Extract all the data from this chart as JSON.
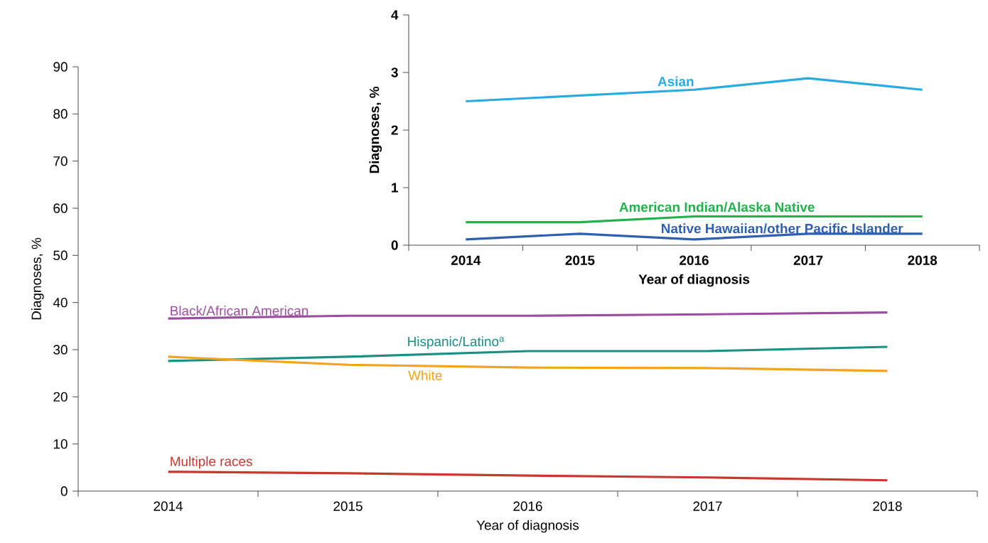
{
  "chart_data": [
    {
      "type": "line",
      "xlabel": "Year of diagnosis",
      "ylabel": "Diagnoses, %",
      "categories": [
        "2014",
        "2015",
        "2016",
        "2017",
        "2018"
      ],
      "ylim": [
        0,
        90
      ],
      "yticks": [
        0,
        10,
        20,
        30,
        40,
        50,
        60,
        70,
        80,
        90
      ],
      "series": [
        {
          "name": "Black/African American",
          "color": "#9b4ea0",
          "values": [
            36.6,
            37.2,
            37.2,
            37.5,
            37.9
          ]
        },
        {
          "name": "Hispanic/Latino$^{a}$",
          "color": "#1a8f84",
          "values": [
            27.6,
            28.5,
            29.7,
            29.7,
            30.6
          ]
        },
        {
          "name": "White",
          "color": "#f5a21c",
          "values": [
            28.5,
            26.8,
            26.2,
            26.1,
            25.5
          ]
        },
        {
          "name": "Multiple races",
          "color": "#c8382e",
          "values": [
            4.1,
            3.8,
            3.3,
            2.9,
            2.3
          ]
        }
      ]
    },
    {
      "type": "line",
      "xlabel": "Year of diagnosis",
      "ylabel": "Diagnoses, %",
      "categories": [
        "2014",
        "2015",
        "2016",
        "2017",
        "2018"
      ],
      "ylim": [
        0,
        4
      ],
      "yticks": [
        0,
        1,
        2,
        3,
        4
      ],
      "series": [
        {
          "name": "Asian",
          "color": "#29abe2",
          "values": [
            2.5,
            2.6,
            2.7,
            2.9,
            2.7
          ]
        },
        {
          "name": "American Indian/Alaska Native",
          "color": "#22b14c",
          "values": [
            0.4,
            0.4,
            0.5,
            0.5,
            0.5
          ]
        },
        {
          "name": "Native Hawaiian/other Pacific Islander",
          "color": "#2e5fb0",
          "values": [
            0.1,
            0.2,
            0.1,
            0.2,
            0.2
          ]
        }
      ]
    }
  ]
}
